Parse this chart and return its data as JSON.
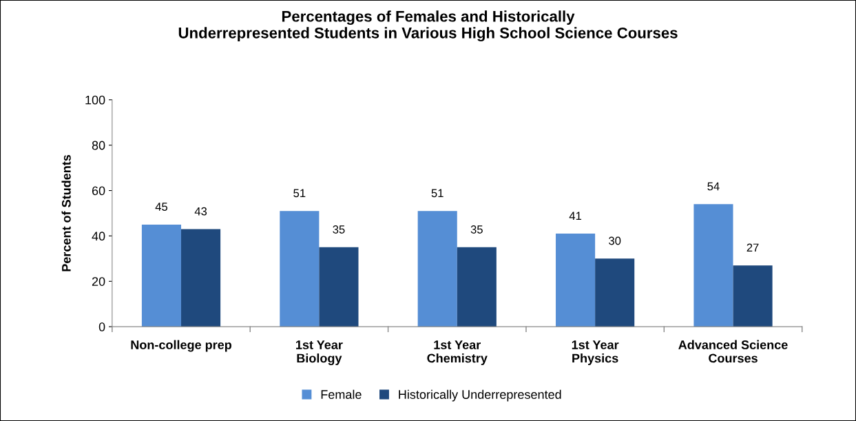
{
  "chart_data": {
    "type": "bar",
    "title": "Percentages of Females and Historically\nUnderrepresented Students in Various High School Science Courses",
    "ylabel": "Percent of Students",
    "categories": [
      "Non-college prep",
      "1st Year\nBiology",
      "1st Year\nChemistry",
      "1st Year\nPhysics",
      "Advanced Science\nCourses"
    ],
    "series": [
      {
        "name": "Female",
        "color": "#558ed5",
        "values": [
          45,
          51,
          51,
          41,
          54
        ]
      },
      {
        "name": "Historically Underrepresented",
        "color": "#1f497d",
        "values": [
          43,
          35,
          35,
          30,
          27
        ]
      }
    ],
    "ylim": [
      0,
      100
    ],
    "yticks": [
      0,
      20,
      40,
      60,
      80,
      100
    ],
    "data_labels": true,
    "grid": false,
    "legend": "bottom"
  }
}
